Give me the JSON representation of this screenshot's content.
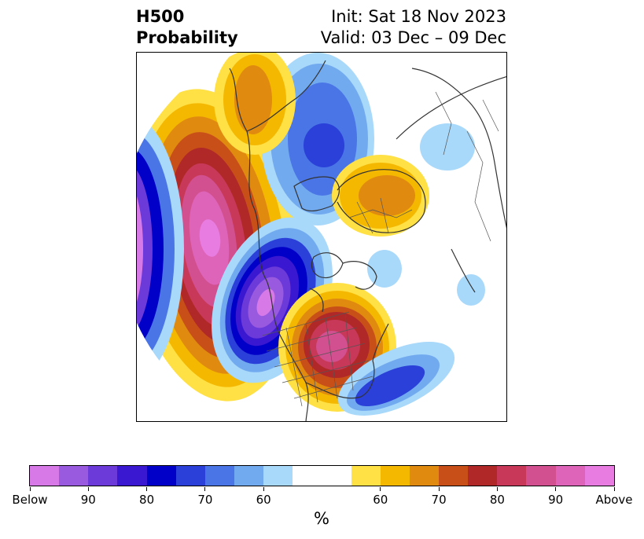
{
  "header": {
    "variable": "H500",
    "product": "Probability",
    "init": "Init: Sat 18 Nov 2023",
    "valid": "Valid: 03 Dec – 09 Dec"
  },
  "map": {
    "projection": "polar stereographic",
    "features": [
      "coastlines",
      "country borders",
      "US state borders"
    ],
    "anomalies": [
      {
        "region": "northeast Pacific / Gulf of Alaska",
        "category": "Above",
        "max_probability": "Above"
      },
      {
        "region": "western Canada / northwest US",
        "category": "Below",
        "max_probability": "Below"
      },
      {
        "region": "eastern US / Great Lakes",
        "category": "Above",
        "max_probability": "90"
      },
      {
        "region": "Greenland",
        "category": "Above",
        "max_probability": "70"
      },
      {
        "region": "Alaska / Arctic",
        "category": "Below",
        "max_probability": "70"
      },
      {
        "region": "North Atlantic",
        "category": "Below",
        "max_probability": "80"
      },
      {
        "region": "far west Pacific edge",
        "category": "Below",
        "max_probability": "80"
      }
    ]
  },
  "colorbar": {
    "colors": [
      "#d77ae8",
      "#9a5ae0",
      "#6b3ad8",
      "#3a17d0",
      "#0000c8",
      "#2a40d8",
      "#4a75e6",
      "#72aaf0",
      "#a8d8fa",
      "#ffffff",
      "#ffe045",
      "#f5b800",
      "#e08a10",
      "#c85018",
      "#b02828",
      "#c83858",
      "#d25090",
      "#dd64b8",
      "#e87ce0"
    ],
    "labels": [
      "Below",
      "90",
      "80",
      "70",
      "60",
      "60",
      "70",
      "80",
      "90",
      "Above"
    ],
    "unit_label": "%"
  }
}
